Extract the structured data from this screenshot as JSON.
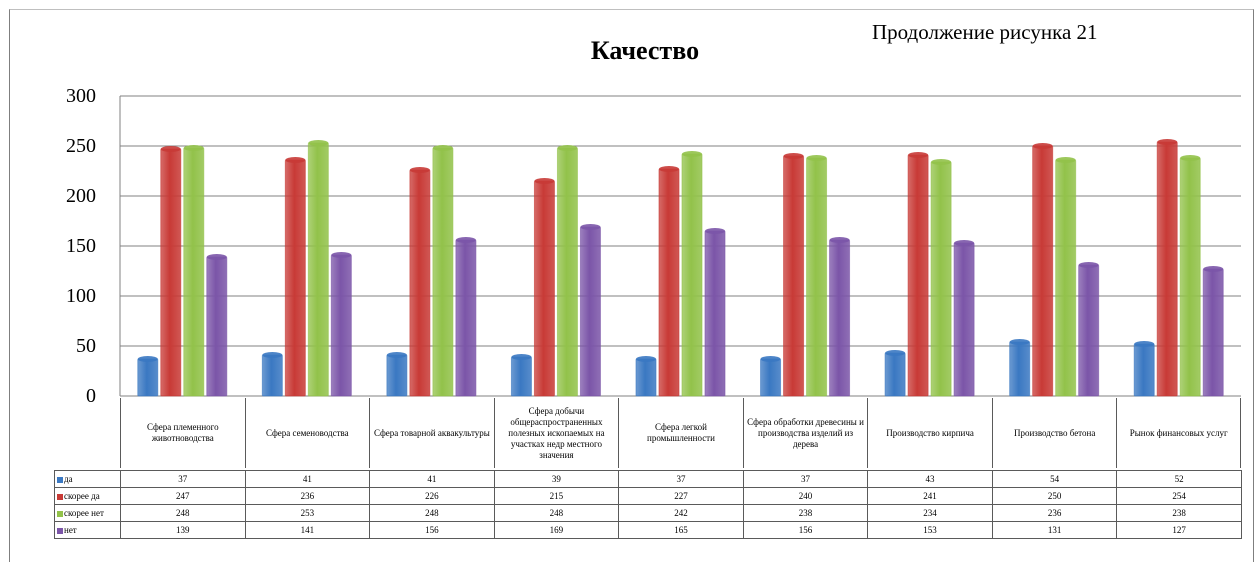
{
  "caption": "Продолжение рисунка 21",
  "chart_data": {
    "type": "bar",
    "title": "Качество",
    "ylim": [
      0,
      300
    ],
    "yticks": [
      0,
      50,
      100,
      150,
      200,
      250,
      300
    ],
    "grid": true,
    "legend": "data table rows",
    "categories": [
      "Сфера племенного животноводства",
      "Сфера семеноводства",
      "Сфера товарной аквакультуры",
      "Сфера добычи общераспространенных полезных ископаемых на участках недр местного значения",
      "Сфера легкой промышленности",
      "Сфера обработки древесины и производства изделий из дерева",
      "Производство кирпича",
      "Производство бетона",
      "Рынок финансовых услуг"
    ],
    "series": [
      {
        "name": "да",
        "color": "#3a78c2",
        "values": [
          37,
          41,
          41,
          39,
          37,
          37,
          43,
          54,
          52
        ]
      },
      {
        "name": "скорее да",
        "color": "#c83a36",
        "values": [
          247,
          236,
          226,
          215,
          227,
          240,
          241,
          250,
          254
        ]
      },
      {
        "name": "скорее нет",
        "color": "#92c24a",
        "values": [
          248,
          253,
          248,
          248,
          242,
          238,
          234,
          236,
          238
        ]
      },
      {
        "name": "нет",
        "color": "#7b55a8",
        "values": [
          139,
          141,
          156,
          169,
          165,
          156,
          153,
          131,
          127
        ]
      }
    ]
  }
}
